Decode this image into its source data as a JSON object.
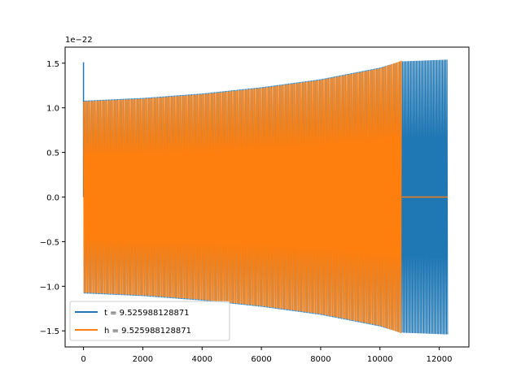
{
  "chart_data": {
    "type": "line",
    "title": "",
    "xlabel": "",
    "ylabel": "",
    "offset_label": "1e−22",
    "xlim": [
      -620,
      13000
    ],
    "ylim": [
      -1.68,
      1.68
    ],
    "y_scale_exponent": -22,
    "x_ticks": [
      0,
      2000,
      4000,
      6000,
      8000,
      10000,
      12000
    ],
    "x_tick_labels": [
      "0",
      "2000",
      "4000",
      "6000",
      "8000",
      "10000",
      "12000"
    ],
    "y_ticks": [
      -1.5,
      -1.0,
      -0.5,
      0.0,
      0.5,
      1.0,
      1.5
    ],
    "y_tick_labels": [
      "−1.5",
      "−1.0",
      "−0.5",
      "0.0",
      "0.5",
      "1.0",
      "1.5"
    ],
    "grid": false,
    "legend_position": "lower left",
    "series": [
      {
        "name": "t = 9.525988128871",
        "color": "#1f77b4",
        "x_end": 12290,
        "spike": {
          "x": 0,
          "peak": 1.51
        },
        "envelope_x": [
          0,
          2000,
          4000,
          6000,
          8000,
          10000,
          10700,
          12290
        ],
        "envelope_amp": [
          1.08,
          1.11,
          1.16,
          1.23,
          1.32,
          1.45,
          1.52,
          1.54
        ],
        "note_amp": 1.08
      },
      {
        "name": "h = 9.525988128871",
        "color": "#ff7f0e",
        "x_end": 10740,
        "envelope_x": [
          0,
          2000,
          4000,
          6000,
          8000,
          10000,
          10740
        ],
        "envelope_amp": [
          1.07,
          1.1,
          1.15,
          1.22,
          1.31,
          1.44,
          1.53
        ],
        "zero_after": [
          10740,
          12290
        ]
      }
    ]
  }
}
